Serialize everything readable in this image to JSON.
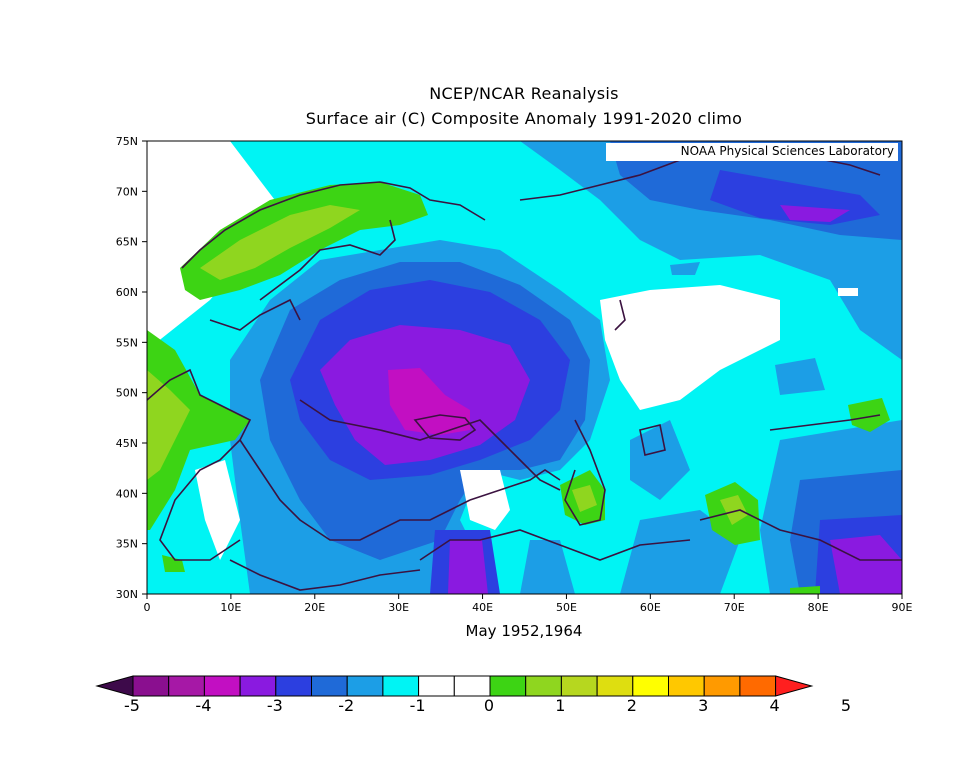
{
  "title_line1": "NCEP/NCAR Reanalysis",
  "title_line2": "Surface air (C) Composite Anomaly 1991-2020 climo",
  "credit": "NOAA Physical Sciences Laboratory",
  "period_label": "May 1952,1964",
  "lat_ticks": [
    "75N",
    "70N",
    "65N",
    "60N",
    "55N",
    "50N",
    "45N",
    "40N",
    "35N",
    "30N"
  ],
  "lon_ticks": [
    "0",
    "10E",
    "20E",
    "30E",
    "40E",
    "50E",
    "60E",
    "70E",
    "80E",
    "90E"
  ],
  "colorbar": {
    "labels": [
      "-5",
      "-4",
      "-3",
      "-2",
      "-1",
      "0",
      "1",
      "2",
      "3",
      "4",
      "5"
    ],
    "colors": [
      "#3d0a4a",
      "#8a0f8f",
      "#a618a6",
      "#c20fc2",
      "#8a1ae0",
      "#2c3fe0",
      "#1f6ad8",
      "#1c9ee6",
      "#00f4f4",
      "#ffffff",
      "#ffffff",
      "#3dd414",
      "#8fd61f",
      "#b6d71f",
      "#dede10",
      "#ffff00",
      "#ffc800",
      "#ff9a00",
      "#ff6a00",
      "#ff1f1f"
    ]
  },
  "palette": {
    "cyan": "#00f4f4",
    "light_blue": "#1c9ee6",
    "blue": "#1f6ad8",
    "royal": "#2c3fe0",
    "violet": "#8a1ae0",
    "magenta": "#c20fc2",
    "green": "#3dd414",
    "yellow_green": "#8fd61f",
    "coast": "#3b1240"
  }
}
